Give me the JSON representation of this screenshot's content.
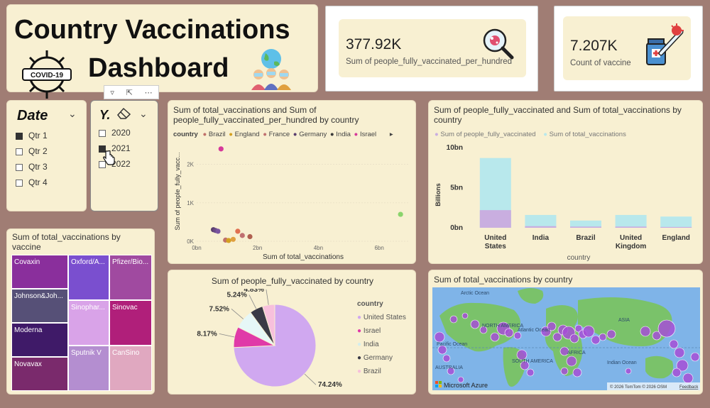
{
  "title": {
    "line1": "Country Vaccinations",
    "line2": "Dashboard",
    "covid_badge": "COVID-19"
  },
  "kpi1": {
    "value": "377.92K",
    "label": "Sum of people_fully_vaccinated_per_hundred"
  },
  "kpi2": {
    "value": "7.207K",
    "label": "Count of vaccine"
  },
  "date_slicer": {
    "title": "Date",
    "items": [
      {
        "label": "Qtr 1",
        "checked": true
      },
      {
        "label": "Qtr 2",
        "checked": false
      },
      {
        "label": "Qtr 3",
        "checked": false
      },
      {
        "label": "Qtr 4",
        "checked": false
      }
    ]
  },
  "year_slicer": {
    "title": "Y.",
    "items": [
      {
        "label": "2020",
        "checked": false
      },
      {
        "label": "2021",
        "checked": true
      },
      {
        "label": "2022",
        "checked": false
      }
    ]
  },
  "scatter": {
    "title": "Sum of total_vaccinations and Sum of people_fully_vaccinated_per_hundred by country",
    "legend_label": "country",
    "legend": [
      {
        "name": "Brazil",
        "color": "#c0706a"
      },
      {
        "name": "England",
        "color": "#d4a020"
      },
      {
        "name": "France",
        "color": "#c07070"
      },
      {
        "name": "Germany",
        "color": "#5a3e6e"
      },
      {
        "name": "India",
        "color": "#3a3a3a"
      },
      {
        "name": "Israel",
        "color": "#d6399a"
      }
    ],
    "xlabel": "Sum of total_vaccinations",
    "ylabel": "Sum of people_fully_vacc...",
    "xticks": [
      "0bn",
      "2bn",
      "4bn",
      "6bn"
    ],
    "yticks": [
      "0K",
      "1K",
      "2K"
    ]
  },
  "bar": {
    "title": "Sum of people_fully_vaccinated and Sum of total_vaccinations by country",
    "legend": [
      {
        "name": "Sum of people_fully_vaccinated",
        "color": "#c9aee0"
      },
      {
        "name": "Sum of total_vaccinations",
        "color": "#b8e8ec"
      }
    ],
    "ylabel": "Billions",
    "xlabel": "country",
    "yticks": [
      "0bn",
      "5bn",
      "10bn"
    ]
  },
  "treemap": {
    "title": "Sum of total_vaccinations by vaccine",
    "tiles": [
      "Covaxin",
      "Johnson&Joh...",
      "Moderna",
      "Novavax",
      "Oxford/A...",
      "Sinophar...",
      "Sputnik V",
      "Pfizer/Bio...",
      "Sinovac",
      "CanSino"
    ]
  },
  "pie": {
    "title": "Sum of people_fully_vaccinated by country",
    "legend_title": "country",
    "labels": [
      "74.24%",
      "8.17%",
      "7.52%",
      "5.24%",
      "4.83%"
    ]
  },
  "map": {
    "title": "Sum of total_vaccinations by country",
    "labels": {
      "arctic": "Arctic Ocean",
      "na": "NORTH AMERICA",
      "pacific": "Pacific Ocean",
      "atlantic": "Atlantic Ocean",
      "sa": "SOUTH AMERICA",
      "australia": "AUSTRALIA",
      "asia": "ASIA",
      "africa": "AFRICA",
      "indian": "Indian Ocean"
    },
    "brand": "Microsoft Azure",
    "copyright": "© 2026 TomTom  © 2026 OSM",
    "feedback": "Feedback"
  },
  "chart_data": [
    {
      "type": "scatter",
      "title": "Sum of total_vaccinations and Sum of people_fully_vaccinated_per_hundred by country",
      "xlabel": "Sum of total_vaccinations",
      "ylabel": "Sum of people_fully_vacc...",
      "xlim": [
        0,
        7
      ],
      "ylim": [
        0,
        2.6
      ],
      "points": [
        {
          "x": 0.8,
          "y": 2.4,
          "color": "#d6399a"
        },
        {
          "x": 0.55,
          "y": 0.3,
          "color": "#5a3e6e"
        },
        {
          "x": 0.62,
          "y": 0.28,
          "color": "#6a4a86"
        },
        {
          "x": 0.7,
          "y": 0.26,
          "color": "#7a55a0"
        },
        {
          "x": 0.95,
          "y": 0.03,
          "color": "#c0706a"
        },
        {
          "x": 1.05,
          "y": 0.02,
          "color": "#d4a020"
        },
        {
          "x": 1.2,
          "y": 0.05,
          "color": "#e0a040"
        },
        {
          "x": 1.35,
          "y": 0.26,
          "color": "#e07050"
        },
        {
          "x": 1.5,
          "y": 0.15,
          "color": "#c07070"
        },
        {
          "x": 1.75,
          "y": 0.12,
          "color": "#b06050"
        },
        {
          "x": 6.7,
          "y": 0.7,
          "color": "#8ad46c"
        }
      ]
    },
    {
      "type": "bar",
      "title": "Sum of people_fully_vaccinated and Sum of total_vaccinations by country",
      "categories": [
        "United States",
        "India",
        "Brazil",
        "United Kingdom",
        "England"
      ],
      "ylim": [
        0,
        10
      ],
      "series": [
        {
          "name": "Sum of people_fully_vaccinated",
          "values": [
            2.2,
            0.2,
            0.15,
            0.15,
            0.1
          ]
        },
        {
          "name": "Sum of total_vaccinations",
          "values": [
            8.7,
            1.6,
            0.9,
            1.6,
            1.4
          ]
        }
      ]
    },
    {
      "type": "pie",
      "title": "Sum of people_fully_vaccinated by country",
      "categories": [
        "United States",
        "Israel",
        "India",
        "Germany",
        "Brazil"
      ],
      "values": [
        74.24,
        8.17,
        7.52,
        5.24,
        4.83
      ],
      "colors": [
        "#d0a8f0",
        "#e03aa8",
        "#e6f7f7",
        "#3a3a46",
        "#f7c0dc"
      ]
    }
  ]
}
